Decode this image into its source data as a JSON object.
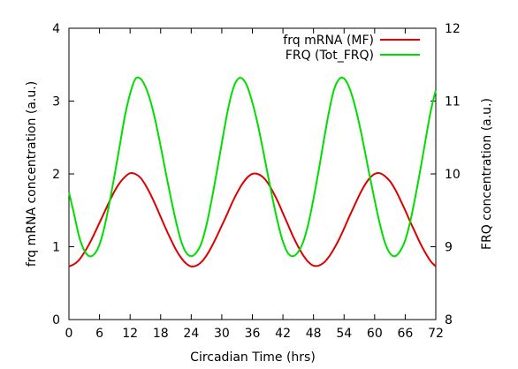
{
  "chart_data": {
    "type": "line",
    "title": "",
    "xlabel": "Circadian Time (hrs)",
    "ylabel": "frq mRNA concentration (a.u.)",
    "y2label": "FRQ concentration (a.u.)",
    "xlim": [
      0,
      72
    ],
    "ylim": [
      0,
      4
    ],
    "y2lim": [
      8,
      12
    ],
    "x_ticks": [
      "0",
      "6",
      "12",
      "18",
      "24",
      "30",
      "36",
      "42",
      "48",
      "54",
      "60",
      "66",
      "72"
    ],
    "y_ticks": [
      "0",
      "1",
      "2",
      "3",
      "4"
    ],
    "y2_ticks": [
      "8",
      "9",
      "10",
      "11",
      "12"
    ],
    "grid": false,
    "legend_position": "top-right",
    "series": [
      {
        "name": "frq mRNA (MF)",
        "axis": "y",
        "color": "#dd0000",
        "x": [
          0,
          1,
          2,
          3,
          4,
          5,
          6,
          7,
          8,
          9,
          10,
          11,
          12,
          13,
          14,
          15,
          16,
          17,
          18,
          19,
          20,
          21,
          22,
          23,
          24,
          25,
          26,
          27,
          28,
          29,
          30,
          31,
          32,
          33,
          34,
          35,
          36,
          37,
          38,
          39,
          40,
          41,
          42,
          43,
          44,
          45,
          46,
          47,
          48,
          49,
          50,
          51,
          52,
          53,
          54,
          55,
          56,
          57,
          58,
          59,
          60,
          61,
          62,
          63,
          64,
          65,
          66,
          67,
          68,
          69,
          70,
          71,
          72
        ],
        "values": [
          0.73,
          0.76,
          0.82,
          0.92,
          1.04,
          1.18,
          1.33,
          1.48,
          1.63,
          1.77,
          1.88,
          1.96,
          2.01,
          2.0,
          1.95,
          1.85,
          1.72,
          1.57,
          1.41,
          1.25,
          1.1,
          0.96,
          0.85,
          0.77,
          0.73,
          0.74,
          0.79,
          0.88,
          1.0,
          1.14,
          1.29,
          1.44,
          1.6,
          1.74,
          1.86,
          1.95,
          2.0,
          2.0,
          1.96,
          1.88,
          1.76,
          1.62,
          1.46,
          1.3,
          1.14,
          1.0,
          0.88,
          0.79,
          0.74,
          0.74,
          0.78,
          0.86,
          0.97,
          1.1,
          1.25,
          1.41,
          1.56,
          1.71,
          1.84,
          1.94,
          2.0,
          2.01,
          1.97,
          1.9,
          1.79,
          1.65,
          1.5,
          1.34,
          1.19,
          1.04,
          0.91,
          0.8,
          0.73
        ]
      },
      {
        "name": "FRQ (Tot_FRQ)",
        "axis": "y2",
        "color": "#00dd00",
        "x": [
          0,
          1,
          2,
          3,
          4,
          5,
          6,
          7,
          8,
          9,
          10,
          11,
          12,
          13,
          14,
          15,
          16,
          17,
          18,
          19,
          20,
          21,
          22,
          23,
          24,
          25,
          26,
          27,
          28,
          29,
          30,
          31,
          32,
          33,
          34,
          35,
          36,
          37,
          38,
          39,
          40,
          41,
          42,
          43,
          44,
          45,
          46,
          47,
          48,
          49,
          50,
          51,
          52,
          53,
          54,
          55,
          56,
          57,
          58,
          59,
          60,
          61,
          62,
          63,
          64,
          65,
          66,
          67,
          68,
          69,
          70,
          71,
          72
        ],
        "values": [
          9.75,
          9.45,
          9.14,
          8.95,
          8.87,
          8.9,
          9.03,
          9.28,
          9.62,
          10.0,
          10.4,
          10.8,
          11.1,
          11.3,
          11.31,
          11.2,
          11.0,
          10.72,
          10.38,
          10.02,
          9.67,
          9.35,
          9.08,
          8.92,
          8.87,
          8.92,
          9.05,
          9.3,
          9.64,
          10.02,
          10.42,
          10.81,
          11.12,
          11.29,
          11.31,
          11.2,
          10.98,
          10.7,
          10.36,
          10.0,
          9.65,
          9.33,
          9.07,
          8.91,
          8.87,
          8.93,
          9.07,
          9.32,
          9.66,
          10.04,
          10.45,
          10.84,
          11.15,
          11.3,
          11.31,
          11.19,
          10.97,
          10.68,
          10.34,
          9.98,
          9.64,
          9.32,
          9.06,
          8.91,
          8.87,
          8.94,
          9.09,
          9.35,
          9.69,
          10.07,
          10.47,
          10.86,
          11.15
        ]
      }
    ]
  }
}
